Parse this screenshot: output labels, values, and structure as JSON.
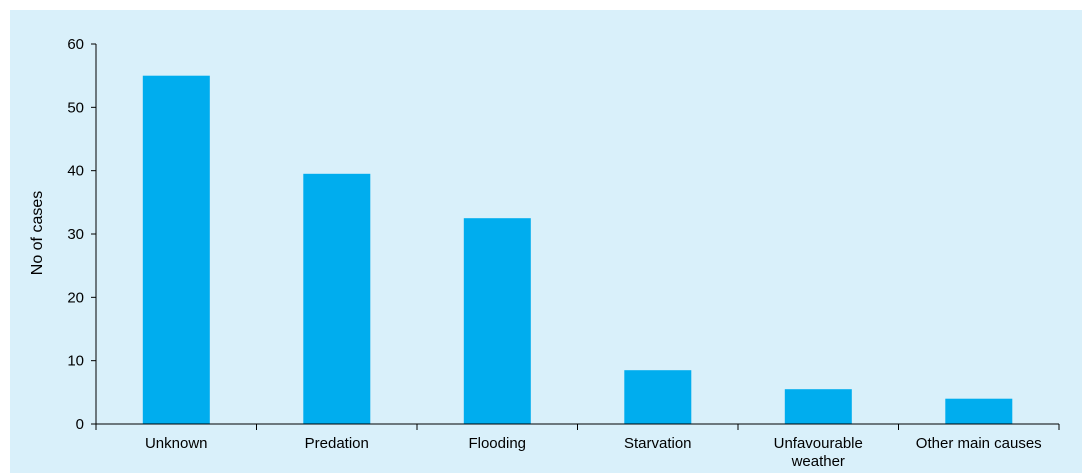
{
  "chart_data": {
    "type": "bar",
    "categories": [
      "Unknown",
      "Predation",
      "Flooding",
      "Starvation",
      "Unfavourable weather",
      "Other main causes"
    ],
    "category_lines": [
      [
        "Unknown"
      ],
      [
        "Predation"
      ],
      [
        "Flooding"
      ],
      [
        "Starvation"
      ],
      [
        "Unfavourable",
        "weather"
      ],
      [
        "Other main causes"
      ]
    ],
    "values": [
      55,
      39.5,
      32.5,
      8.5,
      5.5,
      4
    ],
    "title": "",
    "xlabel": "",
    "ylabel": "No of cases",
    "ylim": [
      0,
      60
    ],
    "yticks": [
      0,
      10,
      20,
      30,
      40,
      50,
      60
    ],
    "grid": false,
    "legend": "none"
  },
  "colors": {
    "bar": "#00adee",
    "background": "#d9f0fa",
    "axis": "#000000"
  }
}
